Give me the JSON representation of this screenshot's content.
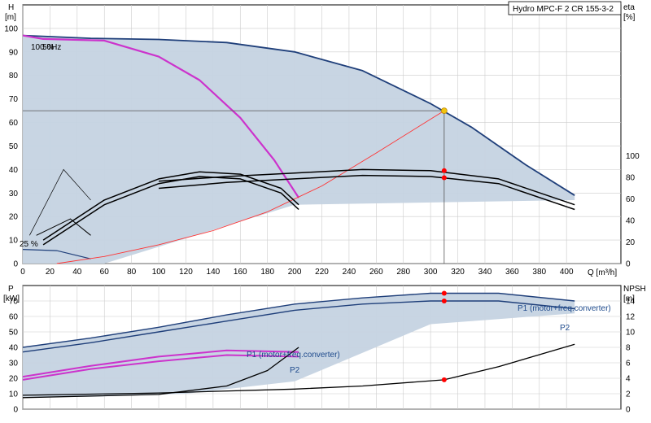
{
  "chart_data": {
    "type": "line",
    "title": "Hydro MPC-F 2 CR 155-3-2",
    "colors": {
      "pump_curve": "#1f3f7a",
      "single_pump": "#1f3f7a",
      "reduced_speed": "#cc33cc",
      "system_curve": "#ff3333",
      "efficiency": "#000000",
      "region_fill": "#c5d3e2",
      "duty_point": "#f2c40d",
      "marker": "#ff0000",
      "grid": "#cccccc"
    },
    "top": {
      "xlabel": "Q [m³/h]",
      "ylabel_left": "H",
      "ylabel_left_unit": "[m]",
      "ylabel_right": "eta",
      "ylabel_right_unit": "[%]",
      "x_ticks": [
        "0",
        "20",
        "40",
        "60",
        "80",
        "100",
        "120",
        "140",
        "160",
        "180",
        "200",
        "220",
        "240",
        "260",
        "280",
        "300",
        "320",
        "340",
        "360",
        "380",
        "400"
      ],
      "y_left_ticks": [
        "0",
        "10",
        "20",
        "30",
        "40",
        "50",
        "60",
        "70",
        "80",
        "90",
        "100"
      ],
      "y_right_ticks": [
        "0",
        "20",
        "40",
        "60",
        "80",
        "100"
      ],
      "xlim": [
        0,
        440
      ],
      "ylim_left": [
        0,
        110
      ],
      "ylim_right": [
        0,
        240
      ],
      "annotations": [
        "100 %",
        "50Hz",
        "25 %"
      ],
      "duty_point": {
        "Q": 310,
        "H": 65
      },
      "series": [
        {
          "role": "pump_curve",
          "x": [
            0,
            20,
            50,
            100,
            150,
            200,
            250,
            300,
            330,
            370,
            406
          ],
          "y": [
            97,
            96.5,
            95.8,
            95.3,
            94,
            90,
            82,
            68,
            58,
            42,
            29
          ]
        },
        {
          "role": "reduced_speed",
          "x": [
            0,
            15,
            60,
            100,
            130,
            160,
            185,
            203
          ],
          "y": [
            97,
            95.5,
            94.8,
            88,
            78,
            62,
            44,
            28
          ]
        },
        {
          "role": "system_curve",
          "x": [
            25,
            60,
            100,
            140,
            180,
            220,
            260,
            310
          ],
          "y": [
            0,
            3,
            8,
            14,
            22,
            33,
            47,
            65
          ]
        },
        {
          "role": "efficiency",
          "x": [
            100,
            150,
            200,
            250,
            300,
            350,
            406
          ],
          "y": [
            35,
            37,
            38.5,
            40,
            39.5,
            36,
            25
          ]
        },
        {
          "role": "efficiency",
          "x": [
            100,
            150,
            200,
            250,
            300,
            350,
            406
          ],
          "y": [
            32,
            34.5,
            36,
            37.5,
            37,
            34,
            23
          ]
        },
        {
          "role": "efficiency",
          "x": [
            15,
            60,
            100,
            130,
            160,
            190,
            203
          ],
          "y": [
            10,
            27,
            36,
            39,
            38,
            32,
            25
          ]
        },
        {
          "role": "efficiency",
          "x": [
            15,
            60,
            100,
            130,
            160,
            190,
            203
          ],
          "y": [
            8,
            25,
            34,
            37,
            36,
            30,
            23
          ]
        }
      ],
      "efficiency_markers": [
        {
          "Q": 310,
          "H": 39.5
        },
        {
          "Q": 310,
          "H": 36.5
        }
      ]
    },
    "bottom": {
      "ylabel_left": "P",
      "ylabel_left_unit": "[kW]",
      "ylabel_right": "NPSH",
      "ylabel_right_unit": "[m]",
      "y_left_ticks": [
        "0",
        "10",
        "20",
        "30",
        "40",
        "50",
        "60",
        "70"
      ],
      "y_right_ticks": [
        "0",
        "2",
        "4",
        "6",
        "8",
        "10",
        "12",
        "14"
      ],
      "ylim_left": [
        0,
        80
      ],
      "ylim_right": [
        0,
        16
      ],
      "series_labels": [
        "P1 (motor+freq.converter)",
        "P2"
      ],
      "series": [
        {
          "role": "P1",
          "x": [
            0,
            50,
            100,
            150,
            200,
            250,
            300,
            350,
            406
          ],
          "y": [
            40,
            46,
            53,
            61,
            68,
            72,
            75,
            75,
            70
          ]
        },
        {
          "role": "P2",
          "x": [
            0,
            50,
            100,
            150,
            200,
            250,
            300,
            350,
            406
          ],
          "y": [
            37,
            43,
            50,
            57,
            64,
            68,
            70,
            70,
            65
          ]
        },
        {
          "role": "P1_reduced",
          "x": [
            0,
            50,
            100,
            150,
            203
          ],
          "y": [
            21,
            28,
            34,
            38,
            37
          ]
        },
        {
          "role": "P2_reduced",
          "x": [
            0,
            50,
            100,
            150,
            203
          ],
          "y": [
            19,
            26,
            31,
            35,
            34
          ]
        },
        {
          "role": "NPSH",
          "x": [
            0,
            100,
            200,
            250,
            310,
            350,
            406
          ],
          "y": [
            1.8,
            2.1,
            2.6,
            3,
            3.8,
            5.5,
            8.4
          ]
        },
        {
          "role": "NPSH_reduced",
          "x": [
            0,
            100,
            150,
            180,
            203
          ],
          "y": [
            1.5,
            1.9,
            3,
            5,
            8
          ]
        }
      ],
      "p_markers": [
        {
          "Q": 310,
          "P": 75
        },
        {
          "Q": 310,
          "P": 70
        }
      ],
      "npsh_marker": {
        "Q": 310,
        "NPSH": 3.8
      }
    }
  }
}
